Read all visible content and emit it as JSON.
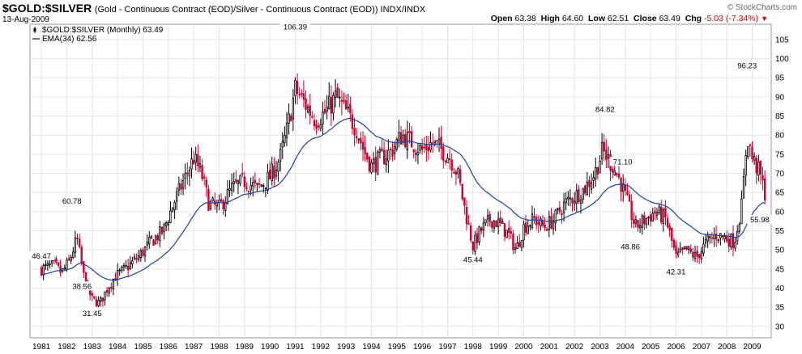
{
  "header": {
    "symbol": "$GOLD:$SILVER",
    "description": "(Gold - Continuous Contract (EOD)/Silver - Continuous Contract (EOD)) INDX/INDX",
    "date": "13-Aug-2009",
    "copyright": "© StockCharts.com",
    "open_label": "Open",
    "open": "63.38",
    "high_label": "High",
    "high": "64.60",
    "low_label": "Low",
    "low": "62.51",
    "close_label": "Close",
    "close": "63.49",
    "chg_label": "Chg",
    "chg": "-5.03 (-7.34%)"
  },
  "colors": {
    "up": "#000000",
    "down": "#cc0033",
    "ema": "#1f3fa6",
    "grid": "#e6e6e6",
    "frame": "#9a9a9a"
  },
  "chart_data": {
    "type": "candlestick",
    "title": "$GOLD:$SILVER",
    "legend": [
      {
        "name": "$GOLD:$SILVER (Monthly) 63.49",
        "icon": "candle-icon"
      },
      {
        "name": "EMA(34) 62.56",
        "icon": "line-icon"
      }
    ],
    "legend_position": "top-left",
    "x_ticks": [
      "1981",
      "1982",
      "1983",
      "1984",
      "1985",
      "1986",
      "1987",
      "1988",
      "1989",
      "1990",
      "1991",
      "1992",
      "1993",
      "1994",
      "1995",
      "1996",
      "1997",
      "1998",
      "1999",
      "2000",
      "2001",
      "2002",
      "2003",
      "2004",
      "2005",
      "2006",
      "2007",
      "2008",
      "2009"
    ],
    "y_ticks": [
      30,
      35,
      40,
      45,
      50,
      55,
      60,
      65,
      70,
      75,
      80,
      85,
      90,
      95,
      100,
      105
    ],
    "ylim": [
      27,
      109
    ],
    "xlim": [
      1980.55,
      2009.75
    ],
    "grid": true,
    "annotations": [
      {
        "label": "46.47",
        "x": 1981.0,
        "y": 46.47
      },
      {
        "label": "60.78",
        "x": 1982.2,
        "y": 60.78
      },
      {
        "label": "38.56",
        "x": 1982.6,
        "y": 38.56
      },
      {
        "label": "31.45",
        "x": 1983.0,
        "y": 31.45
      },
      {
        "label": "106.39",
        "x": 1991.0,
        "y": 106.39
      },
      {
        "label": "45.44",
        "x": 1998.0,
        "y": 45.44
      },
      {
        "label": "84.82",
        "x": 2003.2,
        "y": 84.82
      },
      {
        "label": "71.10",
        "x": 2003.9,
        "y": 71.1
      },
      {
        "label": "48.86",
        "x": 2004.2,
        "y": 48.86
      },
      {
        "label": "42.31",
        "x": 2006.0,
        "y": 42.31
      },
      {
        "label": "96.23",
        "x": 2008.8,
        "y": 96.23
      },
      {
        "label": "55.98",
        "x": 2009.3,
        "y": 55.98
      }
    ],
    "ema_period": 34,
    "anchors": [
      [
        1981.0,
        45
      ],
      [
        1981.5,
        46
      ],
      [
        1981.8,
        44
      ],
      [
        1982.1,
        47
      ],
      [
        1982.4,
        53
      ],
      [
        1982.7,
        42
      ],
      [
        1983.0,
        37
      ],
      [
        1983.3,
        36
      ],
      [
        1983.6,
        40
      ],
      [
        1983.9,
        43
      ],
      [
        1984.3,
        45
      ],
      [
        1984.8,
        48
      ],
      [
        1985.3,
        52
      ],
      [
        1985.8,
        55
      ],
      [
        1986.2,
        62
      ],
      [
        1986.6,
        68
      ],
      [
        1987.0,
        74
      ],
      [
        1987.3,
        70
      ],
      [
        1987.6,
        62
      ],
      [
        1988.0,
        61
      ],
      [
        1988.5,
        66
      ],
      [
        1989.0,
        68
      ],
      [
        1989.5,
        66
      ],
      [
        1990.0,
        69
      ],
      [
        1990.4,
        74
      ],
      [
        1990.7,
        82
      ],
      [
        1991.0,
        92
      ],
      [
        1991.4,
        88
      ],
      [
        1991.8,
        84
      ],
      [
        1992.2,
        86
      ],
      [
        1992.6,
        90
      ],
      [
        1993.0,
        86
      ],
      [
        1993.4,
        82
      ],
      [
        1993.7,
        76
      ],
      [
        1994.0,
        72
      ],
      [
        1994.4,
        74
      ],
      [
        1994.8,
        76
      ],
      [
        1995.2,
        80
      ],
      [
        1995.6,
        78
      ],
      [
        1996.0,
        76
      ],
      [
        1996.4,
        78
      ],
      [
        1996.8,
        76
      ],
      [
        1997.1,
        74
      ],
      [
        1997.4,
        70
      ],
      [
        1997.7,
        60
      ],
      [
        1998.0,
        51
      ],
      [
        1998.3,
        55
      ],
      [
        1998.7,
        58
      ],
      [
        1999.0,
        57
      ],
      [
        1999.4,
        54
      ],
      [
        1999.7,
        50
      ],
      [
        2000.0,
        56
      ],
      [
        2000.4,
        58
      ],
      [
        2000.8,
        56
      ],
      [
        2001.2,
        58
      ],
      [
        2001.6,
        62
      ],
      [
        2002.0,
        64
      ],
      [
        2002.4,
        66
      ],
      [
        2002.8,
        70
      ],
      [
        2003.1,
        76
      ],
      [
        2003.5,
        72
      ],
      [
        2003.8,
        68
      ],
      [
        2004.1,
        62
      ],
      [
        2004.4,
        56
      ],
      [
        2004.8,
        58
      ],
      [
        2005.2,
        60
      ],
      [
        2005.6,
        58
      ],
      [
        2006.0,
        48
      ],
      [
        2006.4,
        50
      ],
      [
        2006.8,
        48
      ],
      [
        2007.2,
        52
      ],
      [
        2007.6,
        54
      ],
      [
        2008.0,
        53
      ],
      [
        2008.3,
        52
      ],
      [
        2008.6,
        62
      ],
      [
        2008.8,
        80
      ],
      [
        2009.0,
        74
      ],
      [
        2009.3,
        70
      ],
      [
        2009.55,
        63.49
      ]
    ]
  }
}
